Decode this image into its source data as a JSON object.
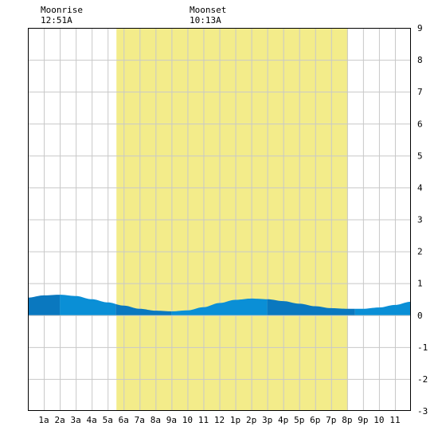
{
  "moon": {
    "moonrise_label": "Moonrise",
    "moonrise_time": "12:51A",
    "moonset_label": "Moonset",
    "moonset_time": "10:13A"
  },
  "colors": {
    "daylight": "#f3ec8a",
    "grid": "#c8c8c8",
    "tide_light": "#0a8fd6",
    "tide_dark": "#0a78bf",
    "border": "#000000"
  },
  "chart_data": {
    "type": "area",
    "title": "",
    "xlabel": "",
    "ylabel": "",
    "xlim": [
      0,
      24
    ],
    "ylim": [
      -3,
      9
    ],
    "x_tick_values": [
      1,
      2,
      3,
      4,
      5,
      6,
      7,
      8,
      9,
      10,
      11,
      12,
      13,
      14,
      15,
      16,
      17,
      18,
      19,
      20,
      21,
      22,
      23
    ],
    "x_tick_labels": [
      "1a",
      "2a",
      "3a",
      "4a",
      "5a",
      "6a",
      "7a",
      "8a",
      "9a",
      "10",
      "11",
      "12",
      "1p",
      "2p",
      "3p",
      "4p",
      "5p",
      "6p",
      "7p",
      "8p",
      "9p",
      "10",
      "11"
    ],
    "y_ticks": [
      9,
      8,
      7,
      6,
      5,
      4,
      3,
      2,
      1,
      0,
      -1,
      -2,
      -3
    ],
    "grid": true,
    "daylight": {
      "start": 5.55,
      "end": 20.05
    },
    "band_color_switch_hours": [
      2,
      5.5,
      9,
      15,
      20.5
    ],
    "series": [
      {
        "x": [
          0,
          1,
          2,
          3,
          4,
          5,
          6,
          7,
          8,
          9,
          10,
          11,
          12,
          13,
          14,
          15,
          16,
          17,
          18,
          19,
          20,
          21,
          22,
          23,
          24
        ],
        "values": [
          0.55,
          0.62,
          0.64,
          0.6,
          0.5,
          0.4,
          0.3,
          0.2,
          0.14,
          0.12,
          0.15,
          0.25,
          0.38,
          0.48,
          0.52,
          0.5,
          0.44,
          0.36,
          0.28,
          0.22,
          0.2,
          0.2,
          0.24,
          0.32,
          0.42
        ]
      }
    ]
  }
}
